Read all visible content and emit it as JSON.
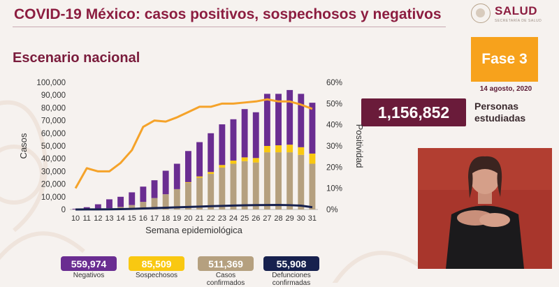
{
  "header": {
    "title": "COVID-19 México: casos positivos, sospechosos y negativos",
    "subtitle": "Escenario nacional"
  },
  "logo": {
    "text": "SALUD",
    "subtext": "SECRETARÍA DE SALUD"
  },
  "phase": {
    "label": "Fase 3",
    "date": "14 agosto, 2020"
  },
  "people": {
    "value": "1,156,852",
    "label": "Personas estudiadas"
  },
  "colors": {
    "negativos": "#6a2d91",
    "sospechosos": "#f9c811",
    "confirmados": "#b5a07f",
    "defunciones": "#17214e",
    "positividad": "#f5a32a",
    "brand": "#8c1d40"
  },
  "stats": [
    {
      "value": "559,974",
      "label": "Negativos",
      "color": "#6a2d91"
    },
    {
      "value": "85,509",
      "label": "Sospechosos",
      "color": "#f9c811"
    },
    {
      "value": "511,369",
      "label": "Casos confirmados",
      "color": "#b5a07f"
    },
    {
      "value": "55,908",
      "label": "Defunciones confirmadas",
      "color": "#17214e"
    }
  ],
  "chart_data": {
    "type": "bar",
    "stacked": true,
    "xlabel": "Semana epidemiológica",
    "ylabel": "Casos",
    "y2label": "Positividad",
    "ylim": [
      0,
      100000
    ],
    "yticks": [
      "0",
      "10,000",
      "20,000",
      "30,000",
      "40,000",
      "50,000",
      "60,000",
      "70,000",
      "80,000",
      "90,000",
      "100,000"
    ],
    "y2lim": [
      0,
      60
    ],
    "y2ticks": [
      "0%",
      "10%",
      "20%",
      "30%",
      "40%",
      "50%",
      "60%"
    ],
    "categories": [
      "10",
      "11",
      "12",
      "13",
      "14",
      "15",
      "16",
      "17",
      "18",
      "19",
      "20",
      "21",
      "22",
      "23",
      "24",
      "25",
      "26",
      "27",
      "28",
      "29",
      "30",
      "31"
    ],
    "series": [
      {
        "name": "Casos confirmados",
        "color": "#b5a07f",
        "values": [
          100,
          300,
          600,
          1000,
          2000,
          3500,
          6000,
          9000,
          12000,
          16000,
          21000,
          25000,
          28000,
          33000,
          36000,
          38000,
          37000,
          45000,
          45000,
          45000,
          43000,
          36000
        ]
      },
      {
        "name": "Sospechosos",
        "color": "#f9c811",
        "values": [
          0,
          0,
          0,
          0,
          0,
          0,
          0,
          0,
          0,
          0,
          500,
          1000,
          1500,
          2000,
          2500,
          3000,
          3500,
          5000,
          5500,
          6000,
          6000,
          8000
        ]
      },
      {
        "name": "Negativos",
        "color": "#6a2d91",
        "values": [
          500,
          1500,
          3500,
          7000,
          8000,
          10000,
          12000,
          14000,
          18500,
          20000,
          24500,
          27000,
          30500,
          32000,
          32500,
          38000,
          36000,
          41000,
          40500,
          43000,
          42000,
          40000
        ]
      }
    ],
    "line_deaths": {
      "name": "Defunciones",
      "color": "#17214e",
      "values": [
        0,
        50,
        100,
        150,
        300,
        500,
        800,
        1100,
        1400,
        1700,
        2000,
        2300,
        2600,
        2800,
        3100,
        3300,
        3400,
        3500,
        3600,
        3400,
        3000,
        1800
      ]
    },
    "line_positivity": {
      "name": "Positividad",
      "color": "#f5a32a",
      "values": [
        10,
        19.5,
        18,
        18,
        22,
        28,
        39,
        42,
        41.5,
        43.5,
        46,
        48.5,
        48.5,
        50,
        50,
        50.5,
        51,
        52,
        51,
        51,
        49.5,
        47.5
      ]
    }
  }
}
